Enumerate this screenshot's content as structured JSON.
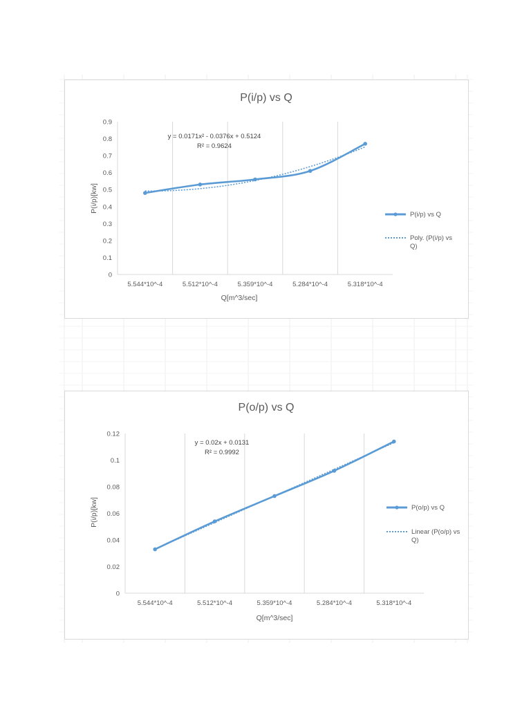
{
  "colors": {
    "series": "#5b9bd5",
    "grid": "#d9d9d9",
    "text": "#595959"
  },
  "chart_data": [
    {
      "type": "line",
      "title": "P(i/p) vs Q",
      "xlabel": "Q[m^3/sec]",
      "ylabel": "P(i/p)[kw]",
      "categories": [
        "5.544*10^-4",
        "5.512*10^-4",
        "5.359*10^-4",
        "5.284*10^-4",
        "5.318*10^-4"
      ],
      "ylim": [
        0,
        0.9
      ],
      "yticks": [
        "0",
        "0.1",
        "0.2",
        "0.3",
        "0.4",
        "0.5",
        "0.6",
        "0.7",
        "0.8",
        "0.9"
      ],
      "series": [
        {
          "name": "P(i/p) vs Q",
          "values": [
            0.48,
            0.53,
            0.56,
            0.61,
            0.77
          ]
        }
      ],
      "trendline": {
        "name": "Poly. (P(i/p) vs Q)",
        "kind": "polynomial",
        "equation": "y = 0.0171x² - 0.0376x + 0.5124",
        "r_squared": "R² = 0.9624",
        "coefficients": [
          0.0171,
          -0.0376,
          0.5124
        ]
      },
      "legend": "right",
      "grid": "vertical"
    },
    {
      "type": "line",
      "title": "P(o/p) vs Q",
      "xlabel": "Q[m^3/sec]",
      "ylabel": "P(i/p)[kw]",
      "categories": [
        "5.544*10^-4",
        "5.512*10^-4",
        "5.359*10^-4",
        "5.284*10^-4",
        "5.318*10^-4"
      ],
      "ylim": [
        0,
        0.12
      ],
      "yticks": [
        "0",
        "0.02",
        "0.04",
        "0.06",
        "0.08",
        "0.1",
        "0.12"
      ],
      "series": [
        {
          "name": "P(o/p) vs Q",
          "values": [
            0.033,
            0.054,
            0.073,
            0.092,
            0.114
          ]
        }
      ],
      "trendline": {
        "name": "Linear (P(o/p) vs Q)",
        "kind": "linear",
        "equation": "y = 0.02x + 0.0131",
        "r_squared": "R² = 0.9992",
        "coefficients": [
          0.02,
          0.0131
        ]
      },
      "legend": "right",
      "grid": "vertical"
    }
  ]
}
